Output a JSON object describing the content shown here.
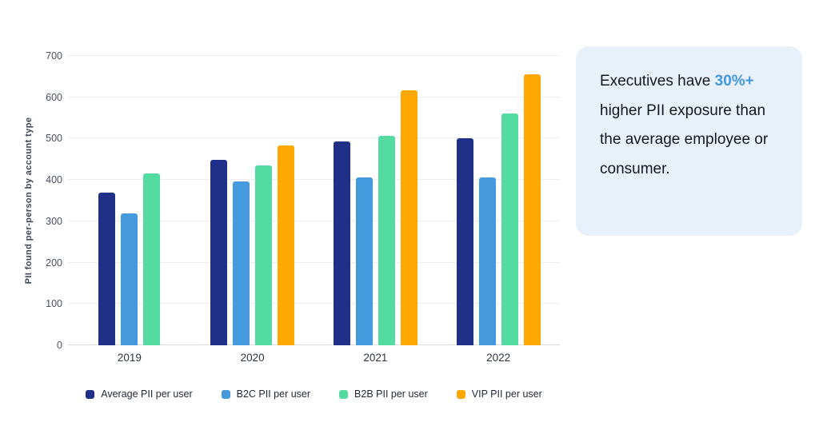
{
  "chart_data": {
    "type": "bar",
    "title": "",
    "categories": [
      "2019",
      "2020",
      "2021",
      "2022"
    ],
    "series": [
      {
        "name": "Average PII per user",
        "color": "#203089",
        "values": [
          370,
          448,
          494,
          501
        ]
      },
      {
        "name": "B2C PII per user",
        "color": "#4599dd",
        "values": [
          320,
          397,
          406,
          406
        ]
      },
      {
        "name": "B2B PII per user",
        "color": "#53dba1",
        "values": [
          415,
          436,
          506,
          561
        ]
      },
      {
        "name": "VIP PII per user",
        "color": "#ffa801",
        "values": [
          null,
          483,
          617,
          656
        ]
      }
    ],
    "xlabel": "",
    "ylabel": "PII found per-person by account type",
    "ylim": [
      0,
      700
    ],
    "yticks": [
      0,
      100,
      200,
      300,
      400,
      500,
      600,
      700
    ],
    "grid": true,
    "legend_position": "bottom"
  },
  "callout": {
    "background": "#e8f0f9",
    "accent_color": "#4298de",
    "segments": [
      {
        "text": "Executives have ",
        "accent": false
      },
      {
        "text": "30%+",
        "accent": true
      },
      {
        "text": " higher PII exposure than the average employee or consumer.",
        "accent": false
      }
    ]
  },
  "colors": {
    "page_background": "#ffffff",
    "gridline": "#ededee",
    "axis_line": "#d8dade",
    "tick_text": "#4a5065",
    "axis_title_text": "#3d4358",
    "x_label_text": "#2d3342",
    "legend_text": "#1e2636"
  }
}
